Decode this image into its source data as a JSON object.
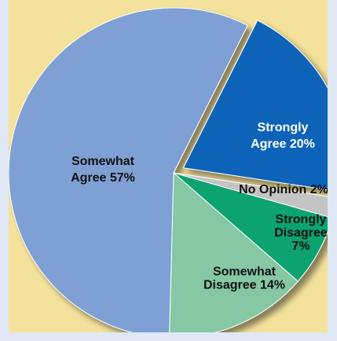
{
  "chart_data": {
    "type": "pie",
    "title": "",
    "slices": [
      {
        "label_lines": [
          "Strongly",
          "Agree 20%"
        ],
        "value": 20,
        "color": "#0a63b8",
        "text_color": "#ffffff"
      },
      {
        "label_lines": [
          "No Opinion 2%"
        ],
        "value": 2,
        "color": "#c4c4c4",
        "text_color": "#111111"
      },
      {
        "label_lines": [
          "Strongly",
          "Disagree",
          "7%"
        ],
        "value": 7,
        "color": "#10a370",
        "text_color": "#111111"
      },
      {
        "label_lines": [
          "Somewhat",
          "Disagree 14%"
        ],
        "value": 14,
        "color": "#86c7a4",
        "text_color": "#111111"
      },
      {
        "label_lines": [
          "Somewhat",
          "Agree 57%"
        ],
        "value": 57,
        "color": "#7ea0d4",
        "text_color": "#111111"
      }
    ]
  }
}
